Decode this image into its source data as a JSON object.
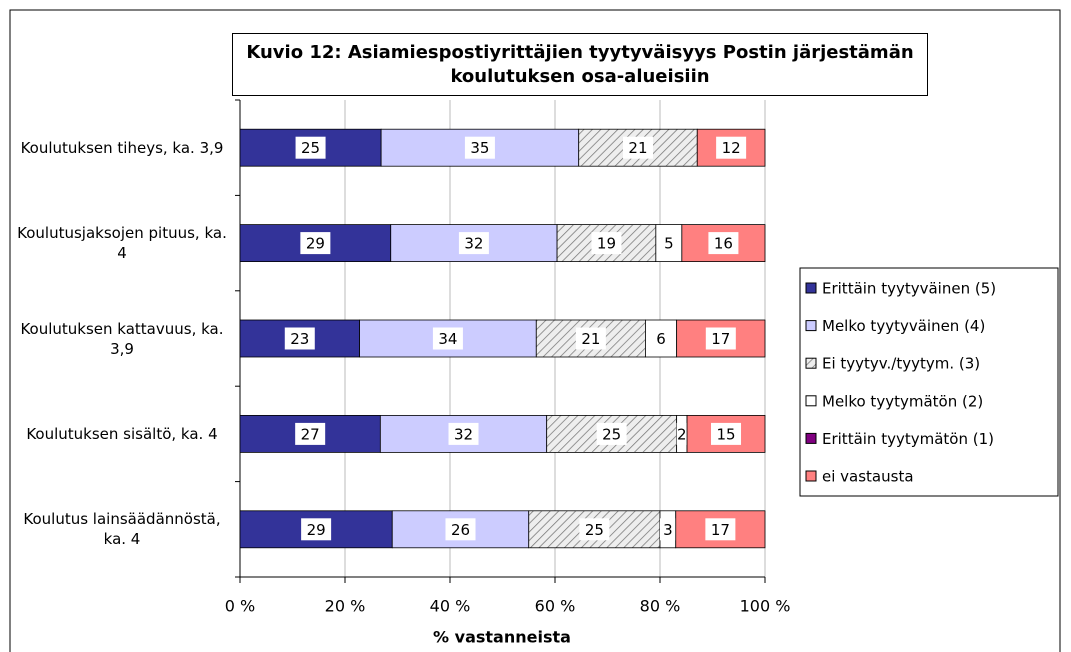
{
  "chart_data": {
    "type": "stacked-bar-100",
    "title": "Kuvio 12: Asiamiespostiyrittäjien tyytyväisyys Postin järjestämän koulutuksen osa-alueisiin",
    "x_label": "% vastanneista",
    "categories": [
      "Koulutuksen tiheys, ka. 3,9",
      "Koulutusjaksojen pituus, ka. 4",
      "Koulutuksen kattavuus, ka. 3,9",
      "Koulutuksen sisältö, ka. 4",
      "Koulutus lainsäädännöstä, ka. 4"
    ],
    "series": [
      {
        "name": "Erittäin tyytyväinen (5)",
        "color": "#333399",
        "values": [
          25,
          29,
          23,
          27,
          29
        ]
      },
      {
        "name": "Melko tyytyväinen (4)",
        "color": "#ccccff",
        "values": [
          35,
          32,
          34,
          32,
          26
        ]
      },
      {
        "name": "Ei tyytyv./tyytym. (3)",
        "color": "hatch",
        "values": [
          21,
          19,
          21,
          25,
          25
        ]
      },
      {
        "name": "Melko tyytymätön (2)",
        "color": "#ffffff",
        "values": [
          null,
          5,
          6,
          2,
          3
        ]
      },
      {
        "name": "Erittäin tyytymätön (1)",
        "color": "#800080",
        "values": [
          null,
          null,
          null,
          null,
          null
        ]
      },
      {
        "name": "ei vastausta",
        "color": "#ff8080",
        "values": [
          12,
          16,
          17,
          15,
          17
        ]
      }
    ],
    "xlim": [
      0,
      100
    ],
    "xticks": [
      {
        "value": 0,
        "label": "0 %"
      },
      {
        "value": 20,
        "label": "20 %"
      },
      {
        "value": 40,
        "label": "40 %"
      },
      {
        "value": 60,
        "label": "60 %"
      },
      {
        "value": 80,
        "label": "80 %"
      },
      {
        "value": 100,
        "label": "100 %"
      }
    ],
    "grid": true,
    "legend": "right"
  }
}
